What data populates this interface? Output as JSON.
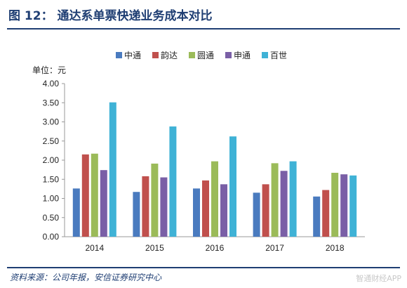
{
  "header": {
    "title": "图 12： 通达系单票快递业务成本对比"
  },
  "footer": {
    "source": "资料来源：公司年报，安信证券研究中心",
    "watermark": "智通财经APP"
  },
  "chart_data": {
    "type": "bar",
    "title": "",
    "unit_label": "单位：元",
    "xlabel": "",
    "ylabel": "",
    "ylim": [
      0,
      4.0
    ],
    "yticks": [
      "0.00",
      "0.50",
      "1.00",
      "1.50",
      "2.00",
      "2.50",
      "3.00",
      "3.50",
      "4.00"
    ],
    "grid": false,
    "legend_position": "top",
    "categories": [
      "2014",
      "2015",
      "2016",
      "2017",
      "2018"
    ],
    "series": [
      {
        "name": "中通",
        "color": "#4a7bbf",
        "values": [
          1.26,
          1.17,
          1.26,
          1.15,
          1.05
        ]
      },
      {
        "name": "韵达",
        "color": "#c0504d",
        "values": [
          2.15,
          1.58,
          1.47,
          1.37,
          1.22
        ]
      },
      {
        "name": "圆通",
        "color": "#9bbb59",
        "values": [
          2.17,
          1.91,
          1.97,
          1.92,
          1.67
        ]
      },
      {
        "name": "申通",
        "color": "#7a5fa6",
        "values": [
          1.74,
          1.55,
          1.37,
          1.72,
          1.63
        ]
      },
      {
        "name": "百世",
        "color": "#3fb2d6",
        "values": [
          3.51,
          2.88,
          2.62,
          1.97,
          1.6
        ]
      }
    ]
  }
}
